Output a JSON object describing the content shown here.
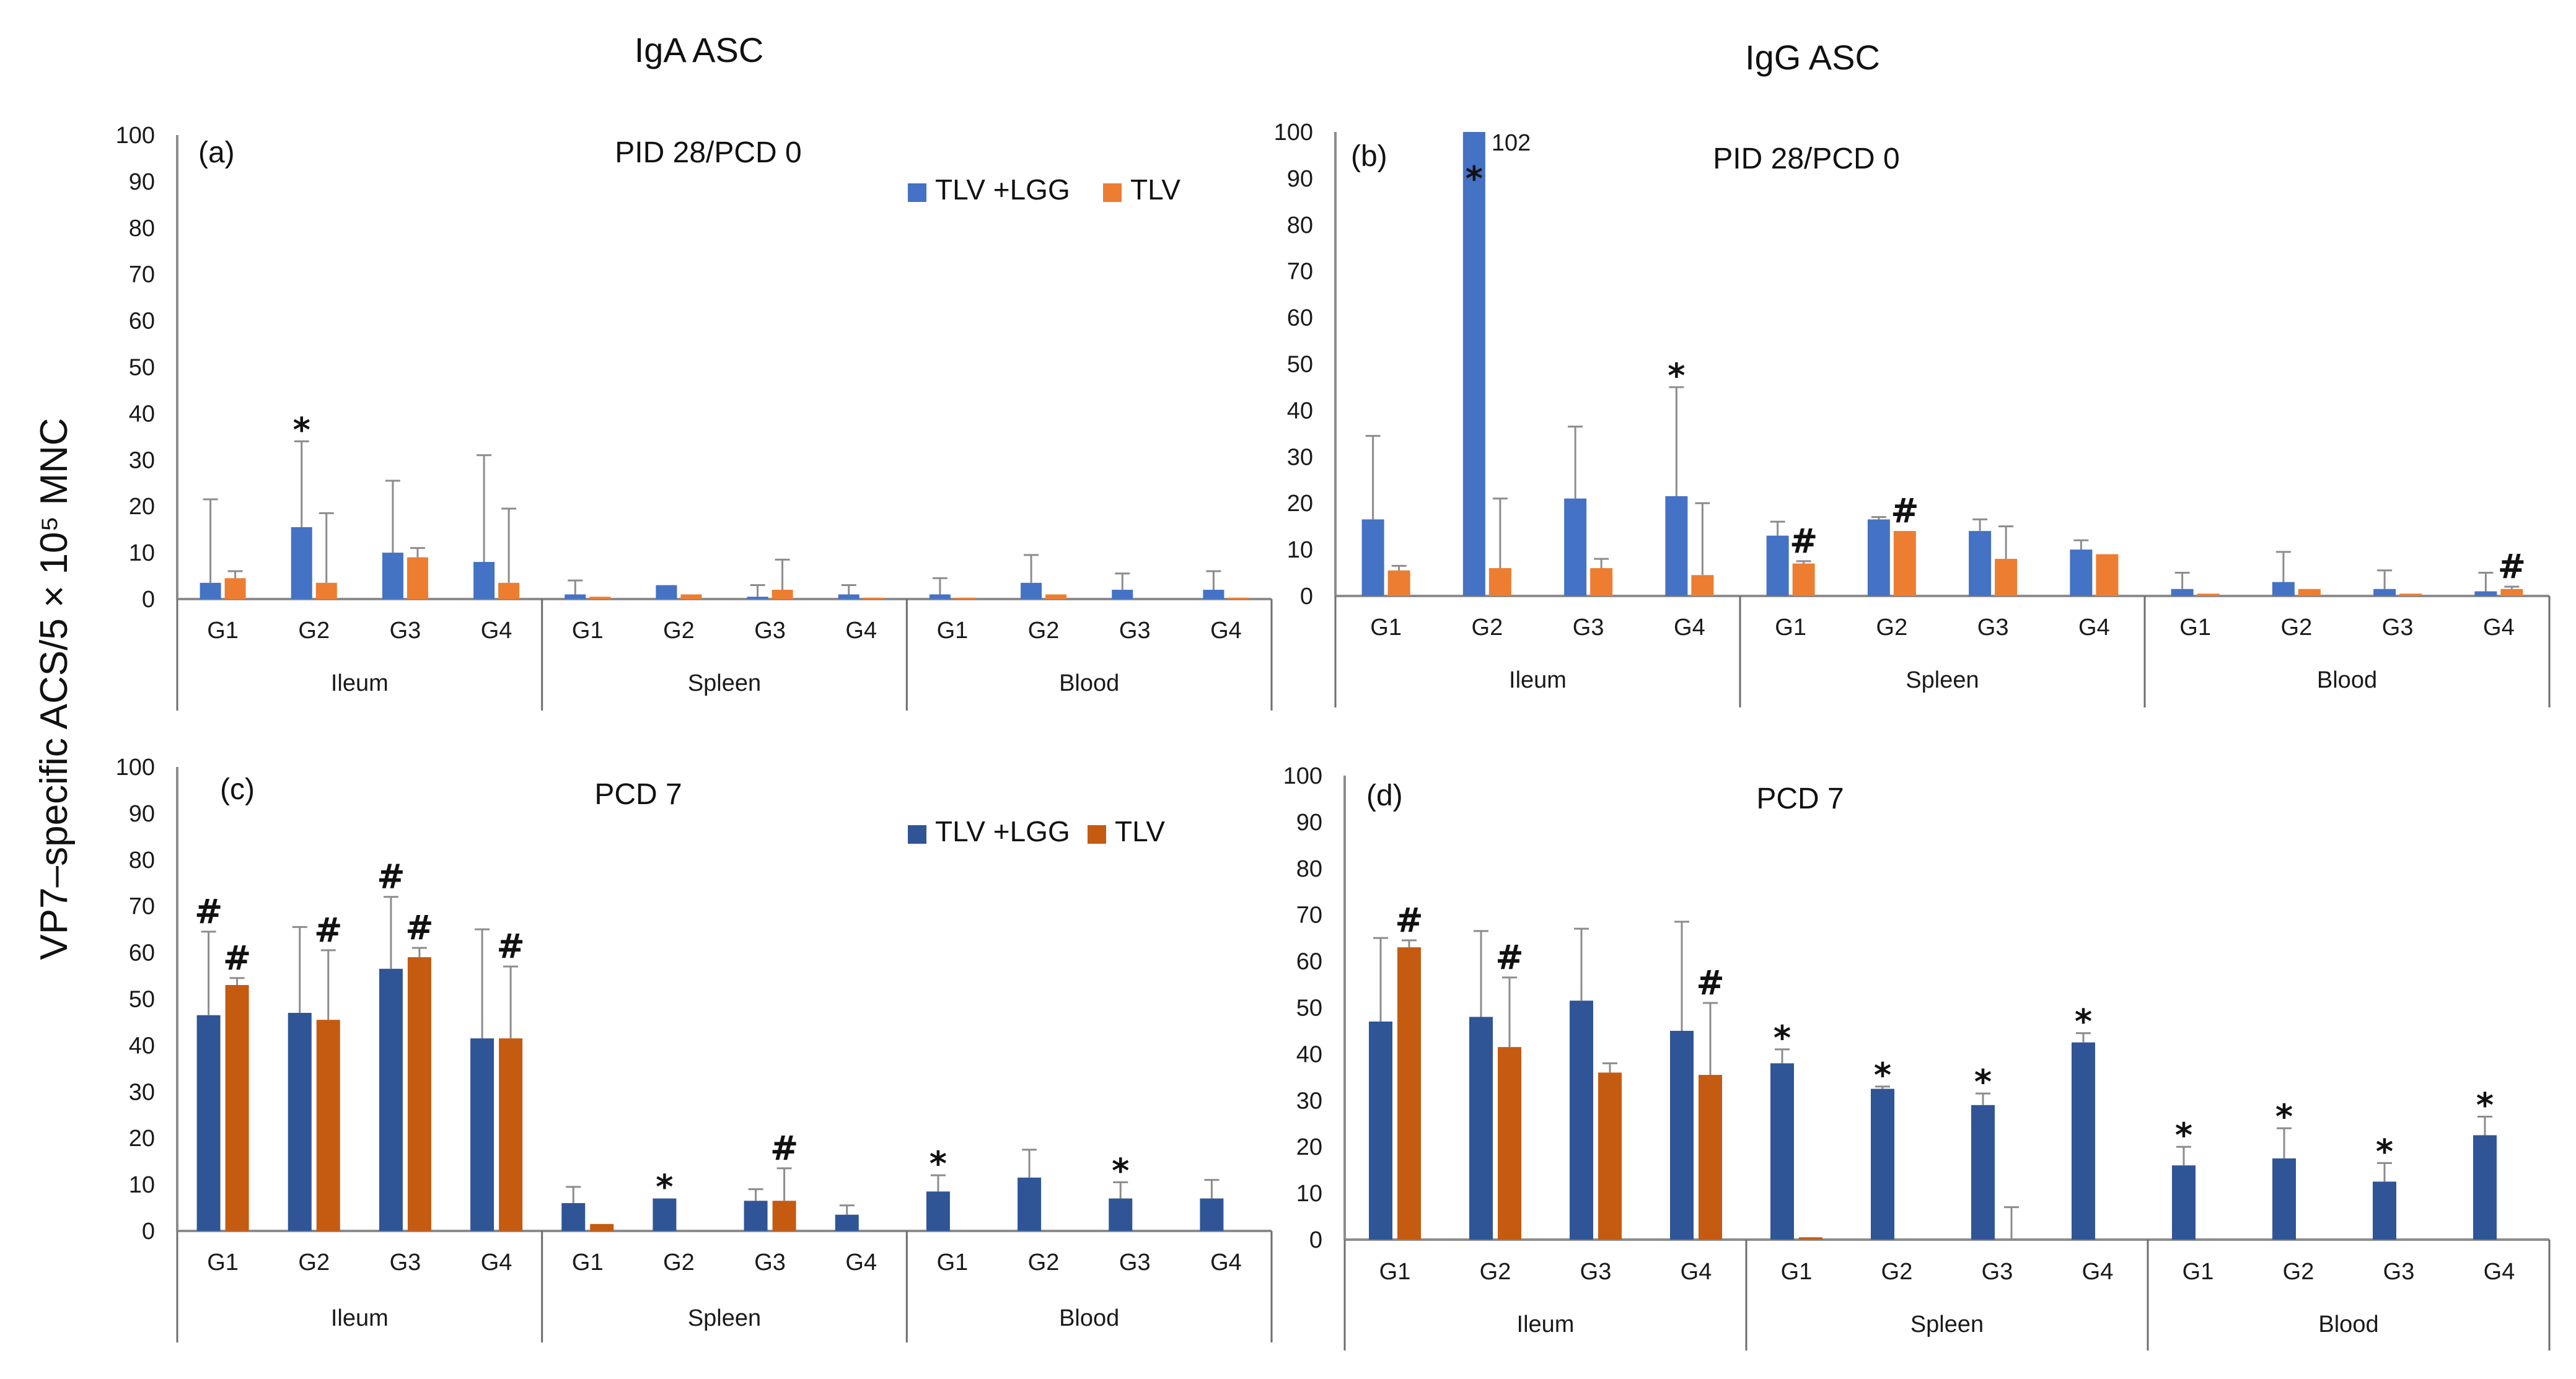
{
  "figure": {
    "ylabel": "VP7–specific ACS/5 × 10⁵ MNC",
    "col_titles": [
      "IgA ASC",
      "IgG ASC"
    ],
    "colors": {
      "top_lgg": "#4472C4",
      "top_tlv": "#ED7D31",
      "bottom_lgg": "#2F5597",
      "bottom_tlv": "#C55A11"
    }
  },
  "chart_data": [
    {
      "type": "bar",
      "panel_label": "(a)",
      "title": "PID 28/PCD 0",
      "legend": [
        "TLV +LGG",
        "TLV"
      ],
      "ylim": [
        0,
        100
      ],
      "yticks": [
        "0",
        "10",
        "20",
        "30",
        "40",
        "50",
        "60",
        "70",
        "80",
        "90",
        "100"
      ],
      "tissues": [
        "Ileum",
        "Spleen",
        "Blood"
      ],
      "categories": [
        "G1",
        "G2",
        "G3",
        "G4",
        "G1",
        "G2",
        "G3",
        "G4",
        "G1",
        "G2",
        "G3",
        "G4"
      ],
      "series": [
        {
          "name": "TLV +LGG",
          "values": [
            3.5,
            15.5,
            10,
            8,
            1,
            3,
            0.5,
            1,
            1,
            3.5,
            2,
            2
          ],
          "errors": [
            18,
            18.5,
            15.5,
            23,
            3,
            0,
            2.5,
            2,
            3.5,
            6,
            3.5,
            4
          ]
        },
        {
          "name": "TLV",
          "values": [
            4.5,
            3.5,
            9,
            3.5,
            0.5,
            1,
            2,
            0.3,
            0.3,
            1,
            0,
            0.3
          ],
          "errors": [
            1.5,
            15,
            2,
            16,
            0,
            0,
            6.5,
            0,
            0,
            0,
            0,
            0
          ]
        }
      ],
      "annotations": [
        {
          "text": "*",
          "cat": 1,
          "series": 0
        }
      ]
    },
    {
      "type": "bar",
      "panel_label": "(b)",
      "title": "PID 28/PCD 0",
      "ylim": [
        0,
        100
      ],
      "yticks": [
        "0",
        "10",
        "20",
        "30",
        "40",
        "50",
        "60",
        "70",
        "80",
        "90",
        "100"
      ],
      "tissues": [
        "Ileum",
        "Spleen",
        "Blood"
      ],
      "categories": [
        "G1",
        "G2",
        "G3",
        "G4",
        "G1",
        "G2",
        "G3",
        "G4",
        "G1",
        "G2",
        "G3",
        "G4"
      ],
      "series": [
        {
          "name": "TLV +LGG",
          "values": [
            16.5,
            102,
            21,
            21.5,
            13,
            16.5,
            14,
            10,
            1.5,
            3,
            1.5,
            1
          ],
          "errors": [
            18,
            0,
            15.5,
            23.5,
            3,
            0.5,
            2.5,
            2,
            3.5,
            6.5,
            4,
            4
          ]
        },
        {
          "name": "TLV",
          "values": [
            5.5,
            6,
            6,
            4.5,
            7,
            14,
            8,
            9,
            0.5,
            1.5,
            0.5,
            1.5
          ],
          "errors": [
            1,
            15,
            2,
            15.5,
            0.5,
            0,
            7,
            0,
            0,
            0,
            0,
            0.5
          ]
        }
      ],
      "value_labels": [
        {
          "text": "102",
          "cat": 1
        }
      ],
      "annotations": [
        {
          "text": "*",
          "cat": 1,
          "series": 0,
          "y": 92
        },
        {
          "text": "*",
          "cat": 3,
          "series": 0
        },
        {
          "text": "#",
          "cat": 4,
          "series": 1
        },
        {
          "text": "#",
          "cat": 5,
          "series": 1
        },
        {
          "text": "#",
          "cat": 11,
          "series": 1
        }
      ]
    },
    {
      "type": "bar",
      "panel_label": "(c)",
      "title": "PCD 7",
      "legend": [
        "TLV +LGG",
        "TLV"
      ],
      "ylim": [
        0,
        100
      ],
      "yticks": [
        "0",
        "10",
        "20",
        "30",
        "40",
        "50",
        "60",
        "70",
        "80",
        "90",
        "100"
      ],
      "tissues": [
        "Ileum",
        "Spleen",
        "Blood"
      ],
      "categories": [
        "G1",
        "G2",
        "G3",
        "G4",
        "G1",
        "G2",
        "G3",
        "G4",
        "G1",
        "G2",
        "G3",
        "G4"
      ],
      "series": [
        {
          "name": "TLV +LGG",
          "values": [
            46.5,
            47,
            56.5,
            41.5,
            6,
            7,
            6.5,
            3.5,
            8.5,
            11.5,
            7,
            7
          ],
          "errors": [
            18,
            18.5,
            15.5,
            23.5,
            3.5,
            0,
            2.5,
            2,
            3.5,
            6,
            3.5,
            4
          ]
        },
        {
          "name": "TLV",
          "values": [
            53,
            45.5,
            59,
            41.5,
            1.5,
            0,
            6.5,
            0,
            0,
            0,
            0,
            0
          ],
          "errors": [
            1.5,
            15,
            2,
            15.5,
            0,
            0,
            7,
            0,
            0,
            0,
            0,
            0
          ]
        }
      ],
      "annotations": [
        {
          "text": "#",
          "cat": 0,
          "series": 0
        },
        {
          "text": "#",
          "cat": 0,
          "series": 1
        },
        {
          "text": "#",
          "cat": 1,
          "series": 1
        },
        {
          "text": "#",
          "cat": 2,
          "series": 0
        },
        {
          "text": "#",
          "cat": 2,
          "series": 1
        },
        {
          "text": "#",
          "cat": 3,
          "series": 1
        },
        {
          "text": "*",
          "cat": 5,
          "series": 0
        },
        {
          "text": "#",
          "cat": 6,
          "series": 1
        },
        {
          "text": "*",
          "cat": 8,
          "series": 0
        },
        {
          "text": "*",
          "cat": 10,
          "series": 0
        }
      ]
    },
    {
      "type": "bar",
      "panel_label": "(d)",
      "title": "PCD 7",
      "ylim": [
        0,
        100
      ],
      "yticks": [
        "0",
        "10",
        "20",
        "30",
        "40",
        "50",
        "60",
        "70",
        "80",
        "90",
        "100"
      ],
      "tissues": [
        "Ileum",
        "Spleen",
        "Blood"
      ],
      "categories": [
        "G1",
        "G2",
        "G3",
        "G4",
        "G1",
        "G2",
        "G3",
        "G4",
        "G1",
        "G2",
        "G3",
        "G4"
      ],
      "series": [
        {
          "name": "TLV +LGG",
          "values": [
            47,
            48,
            51.5,
            45,
            38,
            32.5,
            29,
            42.5,
            16,
            17.5,
            12.5,
            22.5
          ],
          "errors": [
            18,
            18.5,
            15.5,
            23.5,
            3,
            0.5,
            2.5,
            2,
            4,
            6.5,
            4,
            4
          ]
        },
        {
          "name": "TLV",
          "values": [
            63,
            41.5,
            36,
            35.5,
            0.5,
            0,
            0,
            0,
            0,
            0,
            0,
            0
          ],
          "errors": [
            1.5,
            15,
            2,
            15.5,
            0,
            0,
            7,
            0,
            0,
            0,
            0,
            0
          ]
        }
      ],
      "annotations": [
        {
          "text": "#",
          "cat": 0,
          "series": 1
        },
        {
          "text": "#",
          "cat": 1,
          "series": 1
        },
        {
          "text": "#",
          "cat": 3,
          "series": 1
        },
        {
          "text": "*",
          "cat": 4,
          "series": 0
        },
        {
          "text": "*",
          "cat": 5,
          "series": 0
        },
        {
          "text": "*",
          "cat": 6,
          "series": 0
        },
        {
          "text": "*",
          "cat": 7,
          "series": 0
        },
        {
          "text": "*",
          "cat": 8,
          "series": 0
        },
        {
          "text": "*",
          "cat": 9,
          "series": 0
        },
        {
          "text": "*",
          "cat": 10,
          "series": 0
        },
        {
          "text": "*",
          "cat": 11,
          "series": 0
        }
      ]
    }
  ]
}
